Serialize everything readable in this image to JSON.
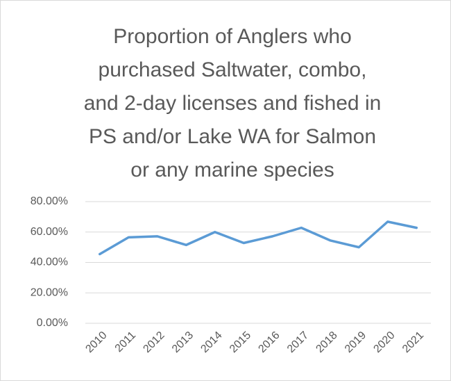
{
  "chart_data": {
    "type": "line",
    "title": [
      "Proportion of Anglers who",
      "purchased Saltwater, combo,",
      "and 2-day licenses and fished in",
      "PS and/or Lake WA for Salmon",
      "or any marine species"
    ],
    "categories": [
      "2010",
      "2011",
      "2012",
      "2013",
      "2014",
      "2015",
      "2016",
      "2017",
      "2018",
      "2019",
      "2020",
      "2021"
    ],
    "values": [
      45.5,
      56.5,
      57.2,
      51.5,
      60,
      52.8,
      57.2,
      62.8,
      54.5,
      50,
      66.8,
      62.8
    ],
    "color": "#5b9bd5",
    "ylim": [
      0,
      80
    ],
    "yticks": [
      {
        "value": 0,
        "label": "0.00%"
      },
      {
        "value": 20,
        "label": "20.00%"
      },
      {
        "value": 40,
        "label": "40.00%"
      },
      {
        "value": 60,
        "label": "60.00%"
      },
      {
        "value": 80,
        "label": "80.00%"
      }
    ],
    "grid": true
  }
}
